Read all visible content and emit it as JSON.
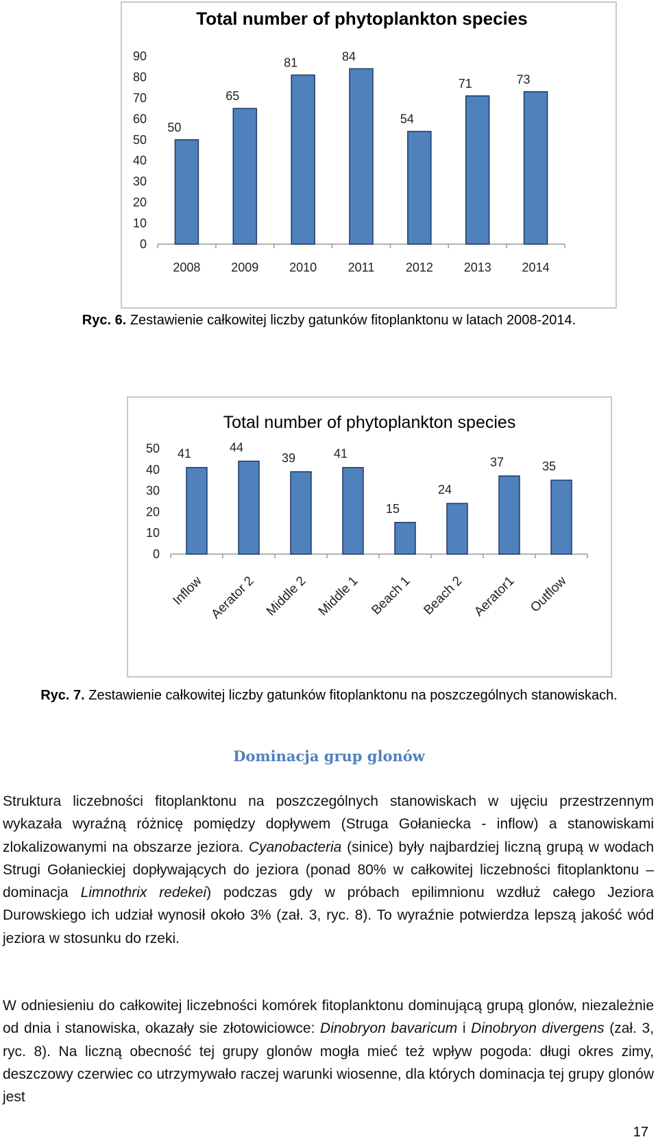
{
  "chart_data": [
    {
      "type": "bar",
      "title": "Total number of phytoplankton species",
      "categories": [
        "2008",
        "2009",
        "2010",
        "2011",
        "2012",
        "2013",
        "2014"
      ],
      "values": [
        50,
        65,
        81,
        84,
        54,
        71,
        73
      ],
      "yticks": [
        "0",
        "10",
        "20",
        "30",
        "40",
        "50",
        "60",
        "70",
        "80",
        "90"
      ],
      "ylim": [
        0,
        90
      ],
      "xlabel": "",
      "ylabel": "",
      "grid": false,
      "legend": "none",
      "bar_color": "#4f81bd",
      "bar_stroke": "#1f3a63"
    },
    {
      "type": "bar",
      "title": "Total number of phytoplankton species",
      "categories": [
        "Inflow",
        "Aerator 2",
        "Middle 2",
        "Middle 1",
        "Beach 1",
        "Beach 2",
        "Aerator1",
        "Outflow"
      ],
      "values": [
        41,
        44,
        39,
        41,
        15,
        24,
        37,
        35
      ],
      "yticks": [
        "0",
        "10",
        "20",
        "30",
        "40",
        "50"
      ],
      "ylim": [
        0,
        50
      ],
      "xlabel": "",
      "ylabel": "",
      "grid": false,
      "legend": "none",
      "bar_color": "#4f81bd",
      "bar_stroke": "#1f3a63"
    }
  ],
  "captions": {
    "fig6_label": "Ryc. 6.",
    "fig6_text": "Zestawienie całkowitej liczby gatunków fitoplanktonu w latach 2008-2014.",
    "fig7_label": "Ryc. 7.",
    "fig7_text": "Zestawienie całkowitej liczby gatunków fitoplanktonu na poszczególnych stanowiskach."
  },
  "section_heading": "Dominacja grup glonów",
  "paragraph1": {
    "part1": "Struktura liczebności fitoplanktonu na poszczególnych stanowiskach w ujęciu przestrzennym wykazała wyraźną różnicę pomiędzy dopływem (Struga Gołaniecka - inflow) a stanowiskami zlokalizowanymi na obszarze jeziora. ",
    "italic1": "Cyanobacteria",
    "part2": " (sinice) były najbardziej liczną grupą w wodach Strugi Gołanieckiej dopływających do jeziora (ponad 80% w całkowitej liczebności fitoplanktonu – dominacja ",
    "italic2": "Limnothrix redekei",
    "part3": ") podczas gdy w próbach epilimnionu wzdłuż całego Jeziora Durowskiego ich udział wynosił około 3% (zał. 3, ryc. 8). To wyraźnie potwierdza lepszą jakość wód jeziora w stosunku do rzeki."
  },
  "paragraph2": {
    "part1": "W odniesieniu do całkowitej liczebności komórek fitoplanktonu dominującą grupą glonów, niezależnie od dnia i stanowiska, okazały sie złotowiciowce: ",
    "italic1": "Dinobryon bavaricum",
    "part2": " i ",
    "italic2": "Dinobryon divergens",
    "part3": " (zał. 3, ryc. 8). Na liczną obecność tej grupy glonów mogła mieć też wpływ pogoda: długi okres zimy, deszczowy czerwiec co utrzymywało raczej warunki wiosenne, dla których dominacja tej grupy glonów jest"
  },
  "page_number": "17"
}
